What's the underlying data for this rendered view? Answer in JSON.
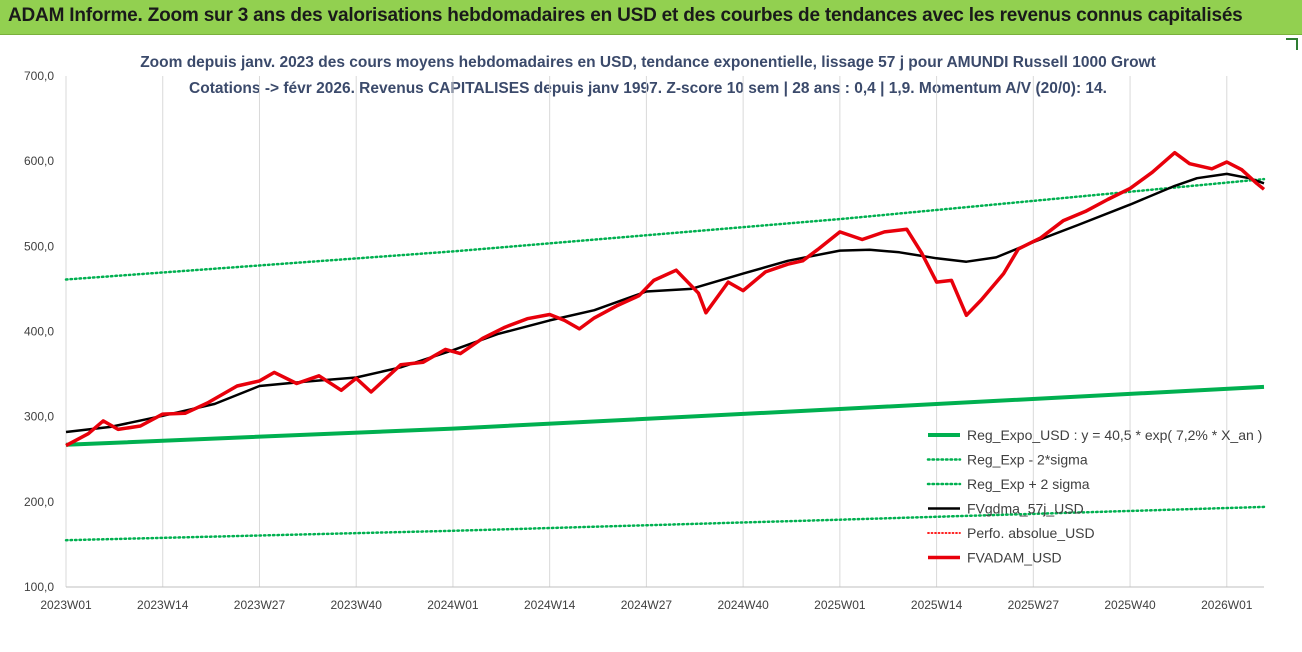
{
  "header": {
    "title": "ADAM Informe. Zoom sur 3 ans des valorisations hebdomadaires en USD et des courbes de tendances avec les revenus connus capitalisés"
  },
  "chart_data": {
    "type": "line",
    "title": "Zoom depuis janv. 2023 des cours moyens hebdomadaires en USD, tendance exponentielle, lissage 57 j pour AMUNDI Russell 1000 Growt",
    "subtitle": "Cotations -> févr 2026. Revenus CAPITALISES depuis janv 1997. Z-score 10 sem | 28 ans : 0,4 | 1,9. Momentum A/V (20/0): 14.",
    "ylim": [
      100,
      700
    ],
    "y_ticks": [
      "100,0",
      "200,0",
      "300,0",
      "400,0",
      "500,0",
      "600,0",
      "700,0"
    ],
    "y_tick_values": [
      100,
      200,
      300,
      400,
      500,
      600,
      700
    ],
    "x_range_weeks": [
      0,
      161
    ],
    "x_ticks": [
      "2023W01",
      "2023W14",
      "2023W27",
      "2023W40",
      "2024W01",
      "2024W14",
      "2024W27",
      "2024W40",
      "2025W01",
      "2025W14",
      "2025W27",
      "2025W40",
      "2026W01"
    ],
    "x_tick_weeks": [
      0,
      13,
      26,
      39,
      52,
      65,
      78,
      91,
      104,
      117,
      130,
      143,
      156
    ],
    "grid": "vertical",
    "legend_position": "bottom-right",
    "series": [
      {
        "name": "Reg_Expo_USD : y = 40,5 * exp( 7,2% *  X_an )",
        "color": "#00b050",
        "style": "solid-thick",
        "points": [
          [
            0,
            267
          ],
          [
            52,
            286
          ],
          [
            104,
            309
          ],
          [
            161,
            335
          ]
        ]
      },
      {
        "name": "Reg_Exp - 2*sigma",
        "color": "#00b050",
        "style": "dotted",
        "points": [
          [
            0,
            155
          ],
          [
            52,
            166
          ],
          [
            104,
            179
          ],
          [
            161,
            194
          ]
        ]
      },
      {
        "name": "Reg_Exp + 2 sigma",
        "color": "#00b050",
        "style": "dotted",
        "points": [
          [
            0,
            461
          ],
          [
            52,
            494
          ],
          [
            104,
            532
          ],
          [
            161,
            579
          ]
        ]
      },
      {
        "name": "FVgdma_57j_USD",
        "color": "#000000",
        "style": "solid",
        "points": [
          [
            0,
            282
          ],
          [
            6,
            288
          ],
          [
            13,
            301
          ],
          [
            20,
            315
          ],
          [
            26,
            336
          ],
          [
            32,
            341
          ],
          [
            39,
            346
          ],
          [
            45,
            358
          ],
          [
            52,
            378
          ],
          [
            58,
            397
          ],
          [
            65,
            413
          ],
          [
            71,
            425
          ],
          [
            78,
            447
          ],
          [
            84,
            450
          ],
          [
            91,
            468
          ],
          [
            97,
            483
          ],
          [
            104,
            495
          ],
          [
            108,
            496
          ],
          [
            112,
            493
          ],
          [
            117,
            486
          ],
          [
            121,
            482
          ],
          [
            125,
            487
          ],
          [
            130,
            505
          ],
          [
            136,
            525
          ],
          [
            143,
            549
          ],
          [
            149,
            571
          ],
          [
            152,
            580
          ],
          [
            156,
            585
          ],
          [
            159,
            580
          ],
          [
            161,
            574
          ]
        ]
      },
      {
        "name": "Perfo. absolue_USD",
        "color": "#ff0000",
        "style": "dotted-thin",
        "points": []
      },
      {
        "name": "FVADAM_USD",
        "color": "#e8000b",
        "style": "solid-thick",
        "points": [
          [
            0,
            266
          ],
          [
            3,
            280
          ],
          [
            5,
            295
          ],
          [
            7,
            285
          ],
          [
            10,
            289
          ],
          [
            13,
            303
          ],
          [
            16,
            304
          ],
          [
            19,
            316
          ],
          [
            23,
            336
          ],
          [
            26,
            342
          ],
          [
            28,
            352
          ],
          [
            31,
            339
          ],
          [
            34,
            348
          ],
          [
            37,
            331
          ],
          [
            39,
            345
          ],
          [
            41,
            329
          ],
          [
            45,
            361
          ],
          [
            48,
            364
          ],
          [
            51,
            379
          ],
          [
            53,
            374
          ],
          [
            56,
            392
          ],
          [
            59,
            405
          ],
          [
            62,
            415
          ],
          [
            65,
            420
          ],
          [
            67,
            413
          ],
          [
            69,
            403
          ],
          [
            71,
            416
          ],
          [
            74,
            430
          ],
          [
            77,
            442
          ],
          [
            79,
            460
          ],
          [
            82,
            472
          ],
          [
            85,
            445
          ],
          [
            86,
            422
          ],
          [
            89,
            458
          ],
          [
            91,
            448
          ],
          [
            94,
            470
          ],
          [
            97,
            479
          ],
          [
            99,
            483
          ],
          [
            101,
            496
          ],
          [
            104,
            517
          ],
          [
            107,
            508
          ],
          [
            110,
            517
          ],
          [
            113,
            520
          ],
          [
            115,
            492
          ],
          [
            117,
            458
          ],
          [
            119,
            460
          ],
          [
            121,
            419
          ],
          [
            123,
            437
          ],
          [
            126,
            468
          ],
          [
            128,
            497
          ],
          [
            131,
            510
          ],
          [
            134,
            530
          ],
          [
            137,
            541
          ],
          [
            140,
            555
          ],
          [
            143,
            568
          ],
          [
            146,
            587
          ],
          [
            149,
            610
          ],
          [
            151,
            597
          ],
          [
            154,
            591
          ],
          [
            156,
            599
          ],
          [
            158,
            590
          ],
          [
            160,
            574
          ],
          [
            161,
            567
          ]
        ]
      }
    ]
  }
}
